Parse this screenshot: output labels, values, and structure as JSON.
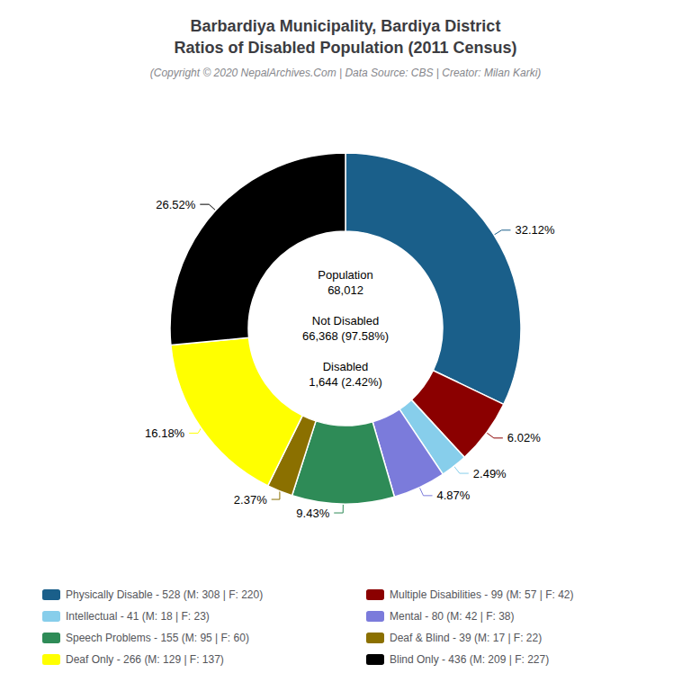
{
  "chart_data": {
    "type": "pie",
    "title": "Barbardiya Municipality, Bardiya District\nRatios of Disabled Population (2011 Census)",
    "subtitle": "(Copyright © 2020 NepalArchives.Com | Data Source: CBS | Creator: Milan Karki)",
    "annotations": [
      "Population\n68,012",
      "Not Disabled\n66,368 (97.58%)",
      "Disabled\n1,644 (2.42%)"
    ],
    "categories": [
      "Physically Disable - 528 (M: 308 | F: 220)",
      "Multiple Disabilities - 99 (M: 57 | F: 42)",
      "Intellectual - 41 (M: 18 | F: 23)",
      "Mental - 80 (M: 42 | F: 38)",
      "Speech Problems - 155 (M: 95 | F: 60)",
      "Deaf & Blind - 39 (M: 17 | F: 22)",
      "Deaf Only - 266 (M: 129 | F: 137)",
      "Blind Only - 436 (M: 209 | F: 227)"
    ],
    "values": [
      32.12,
      6.02,
      2.49,
      4.87,
      9.43,
      2.37,
      16.18,
      26.52
    ],
    "value_labels": [
      "32.12%",
      "6.02%",
      "2.49%",
      "4.87%",
      "9.43%",
      "2.37%",
      "16.18%",
      "26.52%"
    ],
    "colors": [
      "#1a5f8a",
      "#8b0000",
      "#87ceeb",
      "#7b7bdb",
      "#2e8b57",
      "#8b7000",
      "#ffff00",
      "#000000"
    ],
    "legend": "bottom"
  }
}
